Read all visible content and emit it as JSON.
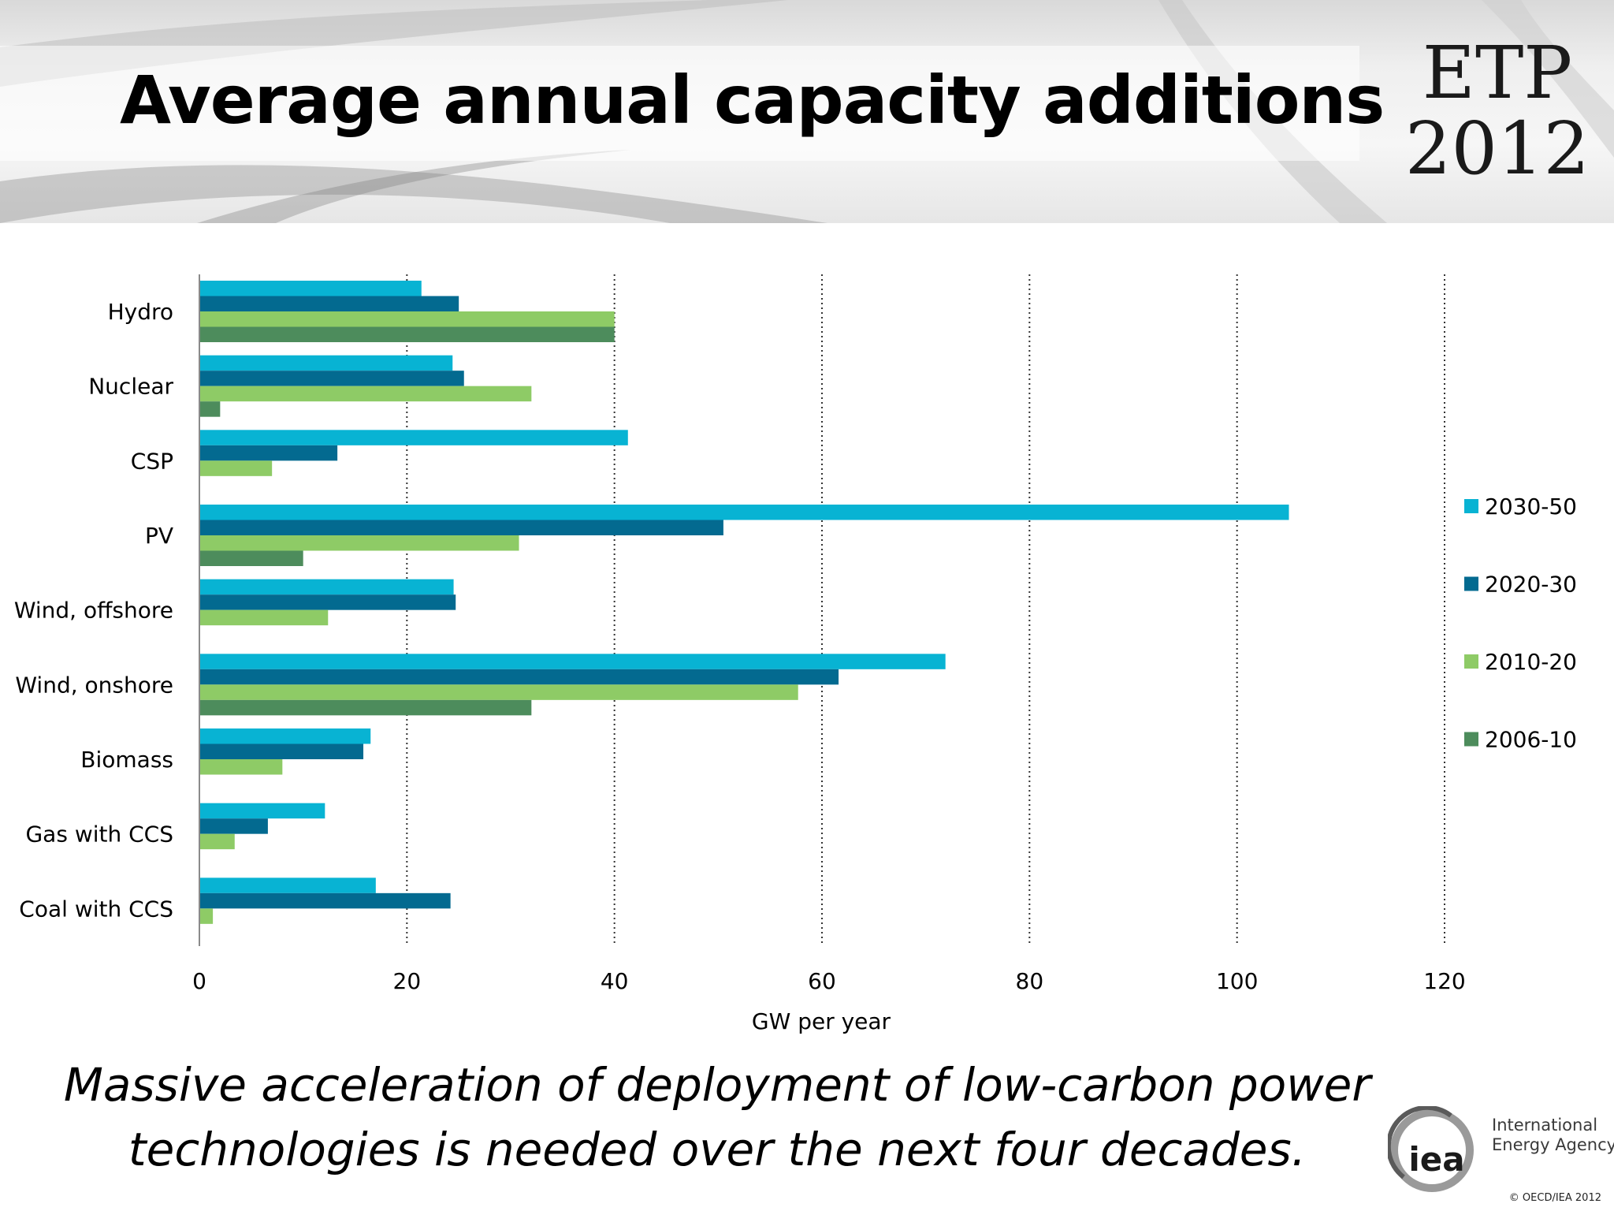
{
  "header": {
    "title": "Average annual capacity additions",
    "logo_line1": "ETP",
    "logo_line2": "2012"
  },
  "subtitle": {
    "line1": "Massive acceleration of deployment of low-carbon power",
    "line2": "technologies is needed over the next four decades."
  },
  "footer": {
    "org_line1": "International",
    "org_line2": "Energy Agency",
    "logo_text": "iea",
    "copyright": "© OECD/IEA 2012"
  },
  "chart_data": {
    "type": "bar",
    "orientation": "horizontal",
    "categories": [
      "Hydro",
      "Nuclear",
      "CSP",
      "PV",
      "Wind, offshore",
      "Wind, onshore",
      "Biomass",
      "Gas with CCS",
      "Coal with CCS"
    ],
    "series": [
      {
        "name": "2030-50",
        "color": "#08b3d3",
        "values": [
          21.4,
          24.4,
          41.3,
          105.0,
          24.5,
          71.9,
          16.5,
          12.1,
          17.0
        ]
      },
      {
        "name": "2020-30",
        "color": "#036a90",
        "values": [
          25.0,
          25.5,
          13.3,
          50.5,
          24.7,
          61.6,
          15.8,
          6.6,
          24.2
        ]
      },
      {
        "name": "2010-20",
        "color": "#8ecb66",
        "values": [
          40.0,
          32.0,
          7.0,
          30.8,
          12.4,
          57.7,
          8.0,
          3.4,
          1.3
        ]
      },
      {
        "name": "2006-10",
        "color": "#4d8c5c",
        "values": [
          40.0,
          2.0,
          null,
          10.0,
          null,
          32.0,
          null,
          null,
          null
        ]
      }
    ],
    "xlabel": "GW per year",
    "xlim": [
      0,
      120
    ],
    "xticks": [
      0,
      20,
      40,
      60,
      80,
      100,
      120
    ],
    "grid": "vertical dotted",
    "legend_position": "right"
  }
}
